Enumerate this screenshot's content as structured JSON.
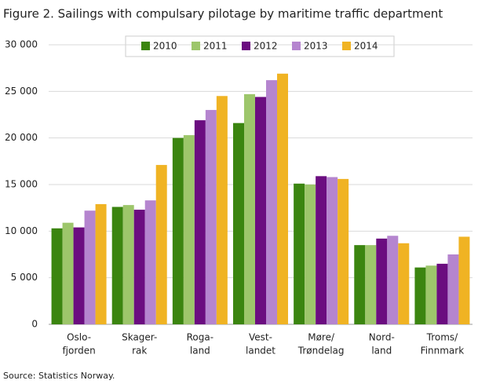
{
  "chart_data": {
    "type": "bar",
    "title": "Figure 2. Sailings with compulsary pilotage by maritime traffic department",
    "source": "Source: Statistics Norway.",
    "categories": [
      [
        "Oslo-",
        "fjorden"
      ],
      [
        "Skager-",
        "rak"
      ],
      [
        "Roga-",
        "land"
      ],
      [
        "Vest-",
        "landet"
      ],
      [
        "Møre/",
        "Trøndelag"
      ],
      [
        "Nord-",
        "land"
      ],
      [
        "Troms/",
        "Finnmark"
      ]
    ],
    "series": [
      {
        "name": "2010",
        "color": "#3b8510",
        "values": [
          10300,
          12600,
          20000,
          21600,
          15100,
          8500,
          6100
        ]
      },
      {
        "name": "2011",
        "color": "#9dc66b",
        "values": [
          10900,
          12800,
          20300,
          24700,
          15000,
          8500,
          6300
        ]
      },
      {
        "name": "2012",
        "color": "#6b0d80",
        "values": [
          10400,
          12300,
          21900,
          24400,
          15900,
          9200,
          6500
        ]
      },
      {
        "name": "2013",
        "color": "#b585cf",
        "values": [
          12200,
          13300,
          23000,
          26200,
          15800,
          9500,
          7500
        ]
      },
      {
        "name": "2014",
        "color": "#f0b323",
        "values": [
          12900,
          17100,
          24500,
          26900,
          15600,
          8700,
          9400
        ]
      }
    ],
    "ylim": [
      0,
      30000
    ],
    "yticks": [
      0,
      {
        "value": 5000,
        "label": "5 000"
      },
      {
        "value": 10000,
        "label": "10 000"
      },
      {
        "value": 15000,
        "label": "15 000"
      },
      {
        "value": 20000,
        "label": "20 000"
      },
      {
        "value": 25000,
        "label": "25 000"
      },
      {
        "value": 30000,
        "label": "30 000"
      }
    ],
    "grid": true
  }
}
